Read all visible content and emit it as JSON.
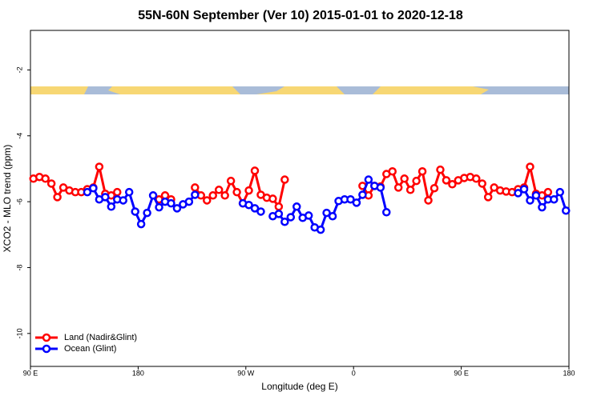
{
  "chart_data": {
    "type": "line",
    "title": "55N-60N September (Ver 10)   2015-01-01 to 2020-12-18",
    "x_label": "Longitude (deg E)",
    "y_label": "XCO2 - MLO trend (ppm)",
    "xlim": [
      90,
      540
    ],
    "ylim": [
      -11,
      -0.8
    ],
    "xticks": [
      {
        "value": 90,
        "label": "90 E"
      },
      180,
      {
        "value": 270,
        "label": "90 W"
      },
      {
        "value": 360,
        "label": "0"
      },
      {
        "value": 450,
        "label": "90 E"
      },
      {
        "value": 540,
        "label": "180"
      }
    ],
    "yticks": [
      -10,
      -8,
      -6,
      -4,
      -2
    ],
    "legend": "bottom-left",
    "x": [
      92.5,
      97.5,
      102.5,
      107.5,
      112.5,
      117.5,
      122.5,
      127.5,
      132.5,
      137.5,
      142.5,
      147.5,
      152.5,
      157.5,
      162.5,
      167.5,
      172.5,
      177.5,
      182.5,
      187.5,
      192.5,
      197.5,
      202.5,
      207.5,
      212.5,
      217.5,
      222.5,
      227.5,
      232.5,
      237.5,
      242.5,
      247.5,
      252.5,
      257.5,
      262.5,
      267.5,
      272.5,
      277.5,
      282.5,
      287.5,
      292.5,
      297.5,
      302.5,
      307.5,
      312.5,
      317.5,
      322.5,
      327.5,
      332.5,
      337.5,
      342.5,
      347.5,
      352.5,
      357.5,
      362.5,
      367.5,
      372.5,
      377.5,
      382.5,
      387.5,
      392.5,
      397.5,
      402.5,
      407.5,
      412.5,
      417.5,
      422.5,
      427.5,
      432.5,
      437.5,
      442.5,
      447.5,
      452.5,
      457.5,
      462.5,
      467.5,
      472.5,
      477.5,
      482.5,
      487.5,
      492.5,
      497.5,
      502.5,
      507.5,
      512.5,
      517.5,
      522.5,
      527.5,
      532.5,
      537.5
    ],
    "series": [
      {
        "name": "Land (Nadir&Glint)",
        "color": "#ff0000",
        "values": [
          -5.3,
          -5.25,
          -5.3,
          -5.45,
          -5.86,
          -5.57,
          -5.66,
          -5.71,
          -5.71,
          -5.62,
          -5.57,
          -4.94,
          -5.76,
          -5.81,
          -5.71,
          null,
          null,
          null,
          null,
          null,
          null,
          -5.93,
          -5.81,
          -5.93,
          null,
          null,
          null,
          -5.57,
          -5.81,
          -5.96,
          -5.81,
          -5.64,
          -5.81,
          -5.37,
          -5.71,
          -6.05,
          -5.66,
          -5.06,
          -5.79,
          -5.88,
          -5.91,
          -6.15,
          -5.33,
          null,
          null,
          null,
          null,
          null,
          null,
          null,
          null,
          null,
          null,
          null,
          null,
          -5.52,
          -5.81,
          -5.52,
          -5.54,
          -5.16,
          -5.08,
          -5.57,
          -5.3,
          -5.64,
          -5.37,
          -5.08,
          -5.96,
          -5.59,
          -5.03,
          -5.35,
          -5.47,
          -5.35,
          -5.28,
          -5.25,
          -5.3,
          -5.45,
          -5.86,
          -5.57,
          -5.66,
          -5.69,
          -5.71,
          -5.62,
          -5.57,
          -4.94,
          -5.76,
          -5.81,
          -5.71,
          null,
          null,
          null
        ]
      },
      {
        "name": "Ocean (Glint)",
        "color": "#0000ff",
        "values": [
          null,
          null,
          null,
          null,
          null,
          null,
          null,
          null,
          null,
          -5.71,
          -5.59,
          -5.93,
          -5.86,
          -6.15,
          -5.93,
          -5.96,
          -5.71,
          -6.3,
          -6.68,
          -6.34,
          -5.81,
          -6.17,
          -6.0,
          -6.05,
          -6.2,
          -6.08,
          -6.0,
          -5.79,
          null,
          null,
          null,
          null,
          null,
          null,
          null,
          -6.05,
          -6.1,
          -6.2,
          -6.3,
          null,
          -6.44,
          -6.37,
          -6.61,
          -6.47,
          -6.15,
          -6.49,
          -6.42,
          -6.78,
          -6.85,
          -6.34,
          -6.44,
          -5.98,
          -5.93,
          -5.93,
          -6.03,
          -5.79,
          -5.33,
          -5.52,
          -5.57,
          -6.32,
          null,
          null,
          null,
          null,
          null,
          null,
          null,
          null,
          null,
          null,
          null,
          null,
          null,
          null,
          null,
          null,
          null,
          null,
          null,
          null,
          null,
          -5.74,
          -5.62,
          -5.96,
          -5.81,
          -6.17,
          -5.93,
          -5.93,
          -5.71,
          -6.27
        ]
      }
    ]
  }
}
